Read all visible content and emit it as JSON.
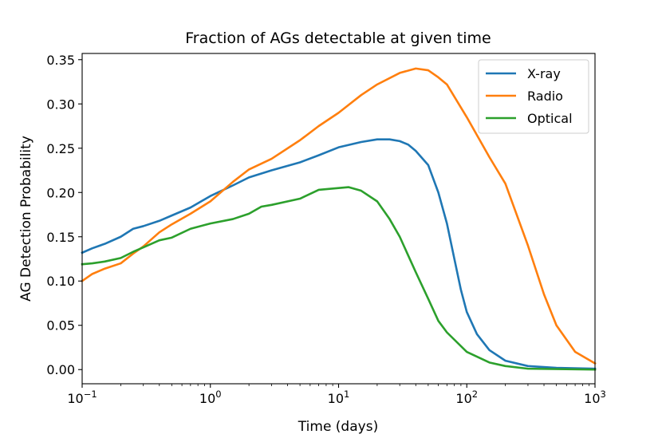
{
  "chart_data": {
    "type": "line",
    "title": "Fraction of AGs detectable at given time",
    "xlabel": "Time (days)",
    "ylabel": "AG Detection Probability",
    "xscale": "log",
    "xlim": [
      0.1,
      1000
    ],
    "ylim": [
      -0.016,
      0.357
    ],
    "x_ticks": [
      {
        "value": 0.1,
        "base": "10",
        "exp": "−1"
      },
      {
        "value": 1,
        "base": "10",
        "exp": "0"
      },
      {
        "value": 10,
        "base": "10",
        "exp": "1"
      },
      {
        "value": 100,
        "base": "10",
        "exp": "2"
      },
      {
        "value": 1000,
        "base": "10",
        "exp": "3"
      }
    ],
    "y_ticks": [
      {
        "value": 0.0,
        "label": "0.00"
      },
      {
        "value": 0.05,
        "label": "0.05"
      },
      {
        "value": 0.1,
        "label": "0.10"
      },
      {
        "value": 0.15,
        "label": "0.15"
      },
      {
        "value": 0.2,
        "label": "0.20"
      },
      {
        "value": 0.25,
        "label": "0.25"
      },
      {
        "value": 0.3,
        "label": "0.30"
      },
      {
        "value": 0.35,
        "label": "0.35"
      }
    ],
    "grid": false,
    "legend_position": "top-right",
    "series": [
      {
        "name": "X-ray",
        "color": "#1f77b4",
        "points": [
          [
            0.1,
            0.132
          ],
          [
            0.12,
            0.137
          ],
          [
            0.15,
            0.142
          ],
          [
            0.2,
            0.15
          ],
          [
            0.25,
            0.159
          ],
          [
            0.3,
            0.162
          ],
          [
            0.4,
            0.168
          ],
          [
            0.5,
            0.174
          ],
          [
            0.7,
            0.183
          ],
          [
            1.0,
            0.196
          ],
          [
            1.5,
            0.208
          ],
          [
            2.0,
            0.217
          ],
          [
            3.0,
            0.225
          ],
          [
            5.0,
            0.234
          ],
          [
            7.0,
            0.242
          ],
          [
            10,
            0.251
          ],
          [
            15,
            0.257
          ],
          [
            20,
            0.26
          ],
          [
            25,
            0.26
          ],
          [
            30,
            0.258
          ],
          [
            35,
            0.254
          ],
          [
            40,
            0.247
          ],
          [
            50,
            0.231
          ],
          [
            60,
            0.2
          ],
          [
            70,
            0.165
          ],
          [
            80,
            0.125
          ],
          [
            90,
            0.09
          ],
          [
            100,
            0.065
          ],
          [
            120,
            0.04
          ],
          [
            150,
            0.022
          ],
          [
            200,
            0.01
          ],
          [
            300,
            0.004
          ],
          [
            500,
            0.002
          ],
          [
            1000,
            0.001
          ]
        ]
      },
      {
        "name": "Radio",
        "color": "#ff7f0e",
        "points": [
          [
            0.1,
            0.1
          ],
          [
            0.12,
            0.108
          ],
          [
            0.15,
            0.114
          ],
          [
            0.2,
            0.12
          ],
          [
            0.25,
            0.131
          ],
          [
            0.3,
            0.139
          ],
          [
            0.4,
            0.155
          ],
          [
            0.5,
            0.164
          ],
          [
            0.7,
            0.176
          ],
          [
            1.0,
            0.19
          ],
          [
            1.5,
            0.212
          ],
          [
            2.0,
            0.226
          ],
          [
            3.0,
            0.238
          ],
          [
            5.0,
            0.259
          ],
          [
            7.0,
            0.275
          ],
          [
            10,
            0.29
          ],
          [
            15,
            0.31
          ],
          [
            20,
            0.322
          ],
          [
            30,
            0.335
          ],
          [
            40,
            0.34
          ],
          [
            50,
            0.338
          ],
          [
            60,
            0.33
          ],
          [
            70,
            0.322
          ],
          [
            100,
            0.285
          ],
          [
            150,
            0.24
          ],
          [
            200,
            0.21
          ],
          [
            300,
            0.14
          ],
          [
            400,
            0.085
          ],
          [
            500,
            0.05
          ],
          [
            700,
            0.02
          ],
          [
            1000,
            0.007
          ]
        ]
      },
      {
        "name": "Optical",
        "color": "#2ca02c",
        "points": [
          [
            0.1,
            0.119
          ],
          [
            0.12,
            0.12
          ],
          [
            0.15,
            0.122
          ],
          [
            0.2,
            0.126
          ],
          [
            0.25,
            0.133
          ],
          [
            0.3,
            0.138
          ],
          [
            0.4,
            0.146
          ],
          [
            0.5,
            0.149
          ],
          [
            0.7,
            0.159
          ],
          [
            1.0,
            0.165
          ],
          [
            1.5,
            0.17
          ],
          [
            2.0,
            0.176
          ],
          [
            2.5,
            0.184
          ],
          [
            3.0,
            0.186
          ],
          [
            5.0,
            0.193
          ],
          [
            7.0,
            0.203
          ],
          [
            10,
            0.205
          ],
          [
            12,
            0.206
          ],
          [
            15,
            0.202
          ],
          [
            20,
            0.19
          ],
          [
            25,
            0.17
          ],
          [
            30,
            0.15
          ],
          [
            40,
            0.11
          ],
          [
            50,
            0.08
          ],
          [
            60,
            0.055
          ],
          [
            70,
            0.042
          ],
          [
            100,
            0.02
          ],
          [
            150,
            0.008
          ],
          [
            200,
            0.004
          ],
          [
            300,
            0.001
          ],
          [
            1000,
            0.0
          ]
        ]
      }
    ]
  }
}
